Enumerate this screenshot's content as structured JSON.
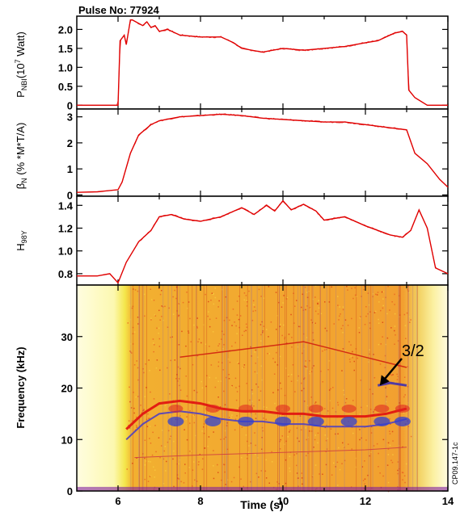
{
  "chart_data": [
    {
      "type": "line",
      "title": "Pulse No: 77924",
      "ylabel": "P_NBI (10^7 Watt)",
      "ylim": [
        -0.1,
        2.35
      ],
      "yticks": [
        0,
        0.5,
        1.0,
        1.5,
        2.0
      ],
      "ytick_labels": [
        "0",
        "0.5",
        "1.0",
        "1.5",
        "2.0"
      ],
      "xlim": [
        5,
        14
      ],
      "color": "#e00000",
      "x": [
        5.0,
        6.0,
        6.05,
        6.15,
        6.2,
        6.3,
        6.35,
        6.6,
        6.7,
        6.8,
        6.9,
        7.0,
        7.2,
        7.5,
        8.0,
        8.5,
        8.8,
        9.0,
        9.5,
        10.0,
        10.5,
        11.0,
        11.5,
        12.0,
        12.3,
        12.5,
        12.7,
        12.9,
        13.0,
        13.05,
        13.2,
        13.5,
        14.0
      ],
      "y": [
        0.0,
        0.0,
        1.7,
        1.85,
        1.6,
        2.25,
        2.25,
        2.1,
        2.2,
        2.05,
        2.1,
        1.95,
        2.0,
        1.85,
        1.8,
        1.8,
        1.65,
        1.5,
        1.4,
        1.5,
        1.45,
        1.5,
        1.55,
        1.65,
        1.7,
        1.8,
        1.9,
        1.95,
        1.85,
        0.4,
        0.2,
        0.0,
        0.0
      ]
    },
    {
      "type": "line",
      "ylabel": "β_N (% *M*T/A)",
      "ylim": [
        -0.05,
        3.3
      ],
      "yticks": [
        0,
        1,
        2,
        3
      ],
      "ytick_labels": [
        "0",
        "1",
        "2",
        "3"
      ],
      "xlim": [
        5,
        14
      ],
      "color": "#e00000",
      "x": [
        5.0,
        5.5,
        6.0,
        6.1,
        6.3,
        6.5,
        6.8,
        7.0,
        7.5,
        8.0,
        8.5,
        9.0,
        9.5,
        10.0,
        10.5,
        11.0,
        11.5,
        12.0,
        12.5,
        13.0,
        13.2,
        13.5,
        13.8,
        14.0
      ],
      "y": [
        0.1,
        0.12,
        0.2,
        0.5,
        1.6,
        2.3,
        2.7,
        2.85,
        3.0,
        3.05,
        3.1,
        3.05,
        2.95,
        2.9,
        2.85,
        2.8,
        2.8,
        2.7,
        2.6,
        2.5,
        1.6,
        1.2,
        0.6,
        0.3
      ]
    },
    {
      "type": "line",
      "ylabel": "H_98Y",
      "ylim": [
        0.7,
        1.48
      ],
      "yticks": [
        0.8,
        1.0,
        1.2,
        1.4
      ],
      "ytick_labels": [
        "0.8",
        "1.0",
        "1.2",
        "1.4"
      ],
      "xlim": [
        5,
        14
      ],
      "color": "#e00000",
      "x": [
        5.0,
        5.5,
        5.8,
        6.0,
        6.2,
        6.5,
        6.8,
        7.0,
        7.3,
        7.6,
        8.0,
        8.5,
        9.0,
        9.3,
        9.6,
        9.8,
        10.0,
        10.2,
        10.5,
        10.8,
        11.0,
        11.5,
        12.0,
        12.3,
        12.6,
        12.9,
        13.1,
        13.3,
        13.5,
        13.7,
        14.0
      ],
      "y": [
        0.78,
        0.78,
        0.8,
        0.72,
        0.9,
        1.08,
        1.18,
        1.3,
        1.32,
        1.28,
        1.26,
        1.3,
        1.38,
        1.32,
        1.4,
        1.35,
        1.44,
        1.36,
        1.41,
        1.35,
        1.27,
        1.3,
        1.22,
        1.18,
        1.14,
        1.12,
        1.18,
        1.36,
        1.2,
        0.85,
        0.8
      ]
    },
    {
      "type": "heatmap",
      "ylabel": "Frequency (kHz)",
      "xlabel": "Time (s)",
      "ylim": [
        0,
        40
      ],
      "yticks": [
        0,
        10,
        20,
        30
      ],
      "ytick_labels": [
        "0",
        "10",
        "20",
        "30"
      ],
      "xlim": [
        5,
        14
      ],
      "xticks": [
        6,
        8,
        10,
        12,
        14
      ],
      "xtick_labels": [
        "6",
        "8",
        "10",
        "12",
        "14"
      ],
      "annotation": "3/2",
      "arrow_to": [
        12.35,
        20.5
      ],
      "side_label": "CP09.147-1c",
      "n11_mode_t": [
        6.2,
        6.6,
        7.0,
        7.5,
        8.0,
        8.5,
        9.0,
        9.5,
        10.0,
        10.5,
        11.0,
        11.5,
        12.0,
        12.5,
        13.0
      ],
      "n11_mode_f": [
        10,
        13,
        15,
        15.5,
        15,
        14,
        13.5,
        13.5,
        13,
        13,
        12.5,
        12.5,
        12.5,
        13,
        14
      ],
      "blue_bursts_t": [
        7.4,
        8.3,
        9.1,
        10.0,
        10.8,
        11.6,
        12.4,
        12.9
      ],
      "mode_32_t": [
        12.3,
        12.6,
        13.0
      ],
      "mode_32_f": [
        20.5,
        21,
        20.5
      ],
      "upper_mode_t": [
        7.5,
        9.0,
        10.5,
        12.0,
        13.0
      ],
      "upper_mode_f": [
        26,
        27.5,
        29,
        26,
        24
      ]
    }
  ]
}
